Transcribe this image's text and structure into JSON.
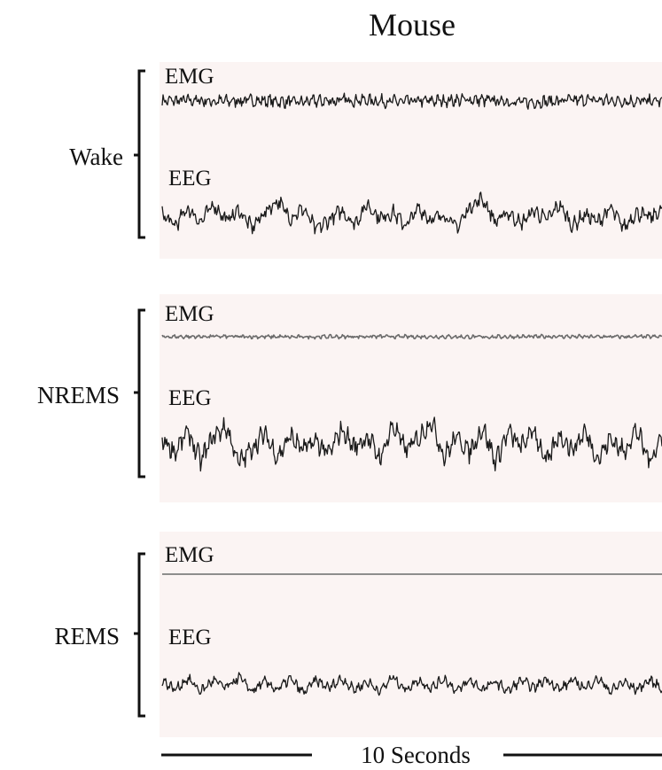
{
  "title": "Mouse",
  "panels": [
    {
      "state": "Wake",
      "emg_label": "EMG",
      "eeg_label": "EEG"
    },
    {
      "state": "NREMS",
      "emg_label": "EMG",
      "eeg_label": "EEG"
    },
    {
      "state": "REMS",
      "emg_label": "EMG",
      "eeg_label": "EEG"
    }
  ],
  "scale_bar": {
    "label": "10 Seconds"
  },
  "colors": {
    "panel_background": "#fbf4f3",
    "trace": "#1a1a1a",
    "flat_trace": "#6b6b6b"
  },
  "chart_data": {
    "type": "line",
    "title": "Mouse",
    "x_unit": "seconds",
    "duration_s": 10,
    "series": [
      {
        "name": "Wake EMG",
        "shape": "noisy-flat",
        "amplitude": 0.06,
        "values": [
          0.0,
          0.01,
          0.02,
          -0.01,
          0.0,
          0.02,
          0.01,
          -0.02,
          -0.03,
          0.0,
          0.01,
          0.03,
          0.02,
          -0.01,
          -0.02,
          0.0,
          0.01,
          0.02,
          0.04,
          0.01,
          -0.01,
          -0.04,
          -0.02,
          0.0,
          0.02,
          0.03,
          0.01,
          0.0,
          -0.01,
          0.0
        ]
      },
      {
        "name": "Wake EEG",
        "shape": "oscillation",
        "amplitude": 1.0,
        "values": [
          0.1,
          -0.5,
          0.4,
          -0.3,
          0.6,
          -0.2,
          0.3,
          -0.6,
          0.2,
          0.8,
          -0.1,
          0.4,
          -0.7,
          -0.2,
          0.3,
          -0.4,
          0.6,
          -0.1,
          0.2,
          -0.5,
          0.4,
          -0.2,
          0.1,
          -0.6,
          0.5,
          0.9,
          -0.3,
          0.2,
          -0.4,
          0.3,
          -0.2,
          0.6,
          -0.5,
          0.1,
          -0.3,
          0.4,
          -0.6,
          0.2,
          -0.1,
          0.3
        ]
      },
      {
        "name": "NREMS EMG",
        "shape": "flat",
        "amplitude": 0.02,
        "values": [
          0.0,
          0.0,
          0.01,
          0.0,
          0.0,
          -0.01,
          0.0,
          0.0,
          0.01,
          0.0,
          0.0,
          0.0,
          -0.01,
          0.0,
          0.0,
          0.01,
          0.0,
          0.0,
          0.0,
          0.0
        ]
      },
      {
        "name": "NREMS EEG",
        "shape": "large-slow-oscillation",
        "amplitude": 1.4,
        "values": [
          0.2,
          -0.4,
          0.5,
          -0.8,
          0.3,
          0.7,
          -0.9,
          -0.2,
          0.4,
          -0.6,
          0.3,
          -0.3,
          0.1,
          -0.5,
          0.6,
          -0.2,
          0.3,
          -0.7,
          0.8,
          -0.3,
          0.2,
          1.0,
          -0.6,
          0.3,
          -0.4,
          0.7,
          -0.8,
          0.5,
          -0.2,
          0.6,
          -0.9,
          0.4,
          -0.3,
          0.5,
          -0.7,
          0.2,
          -0.4,
          0.6,
          -0.8,
          0.3
        ]
      },
      {
        "name": "REMS EMG",
        "shape": "flat",
        "amplitude": 0.0,
        "values": [
          0.0,
          0.0,
          0.0,
          0.0,
          0.0,
          0.0,
          0.0,
          0.0,
          0.0,
          0.0
        ]
      },
      {
        "name": "REMS EEG",
        "shape": "theta-oscillation",
        "amplitude": 0.7,
        "values": [
          0.3,
          -0.3,
          0.4,
          -0.4,
          0.3,
          -0.2,
          0.5,
          -0.4,
          0.2,
          -0.3,
          0.4,
          -0.5,
          0.3,
          -0.2,
          0.4,
          -0.3,
          0.2,
          -0.4,
          0.5,
          -0.3,
          0.3,
          -0.2,
          0.4,
          -0.4,
          0.3,
          -0.3,
          0.2,
          -0.4,
          0.3,
          -0.2,
          0.4,
          -0.3,
          0.3,
          -0.2,
          0.4,
          -0.4,
          0.2,
          -0.3,
          0.3,
          -0.2
        ]
      }
    ]
  }
}
